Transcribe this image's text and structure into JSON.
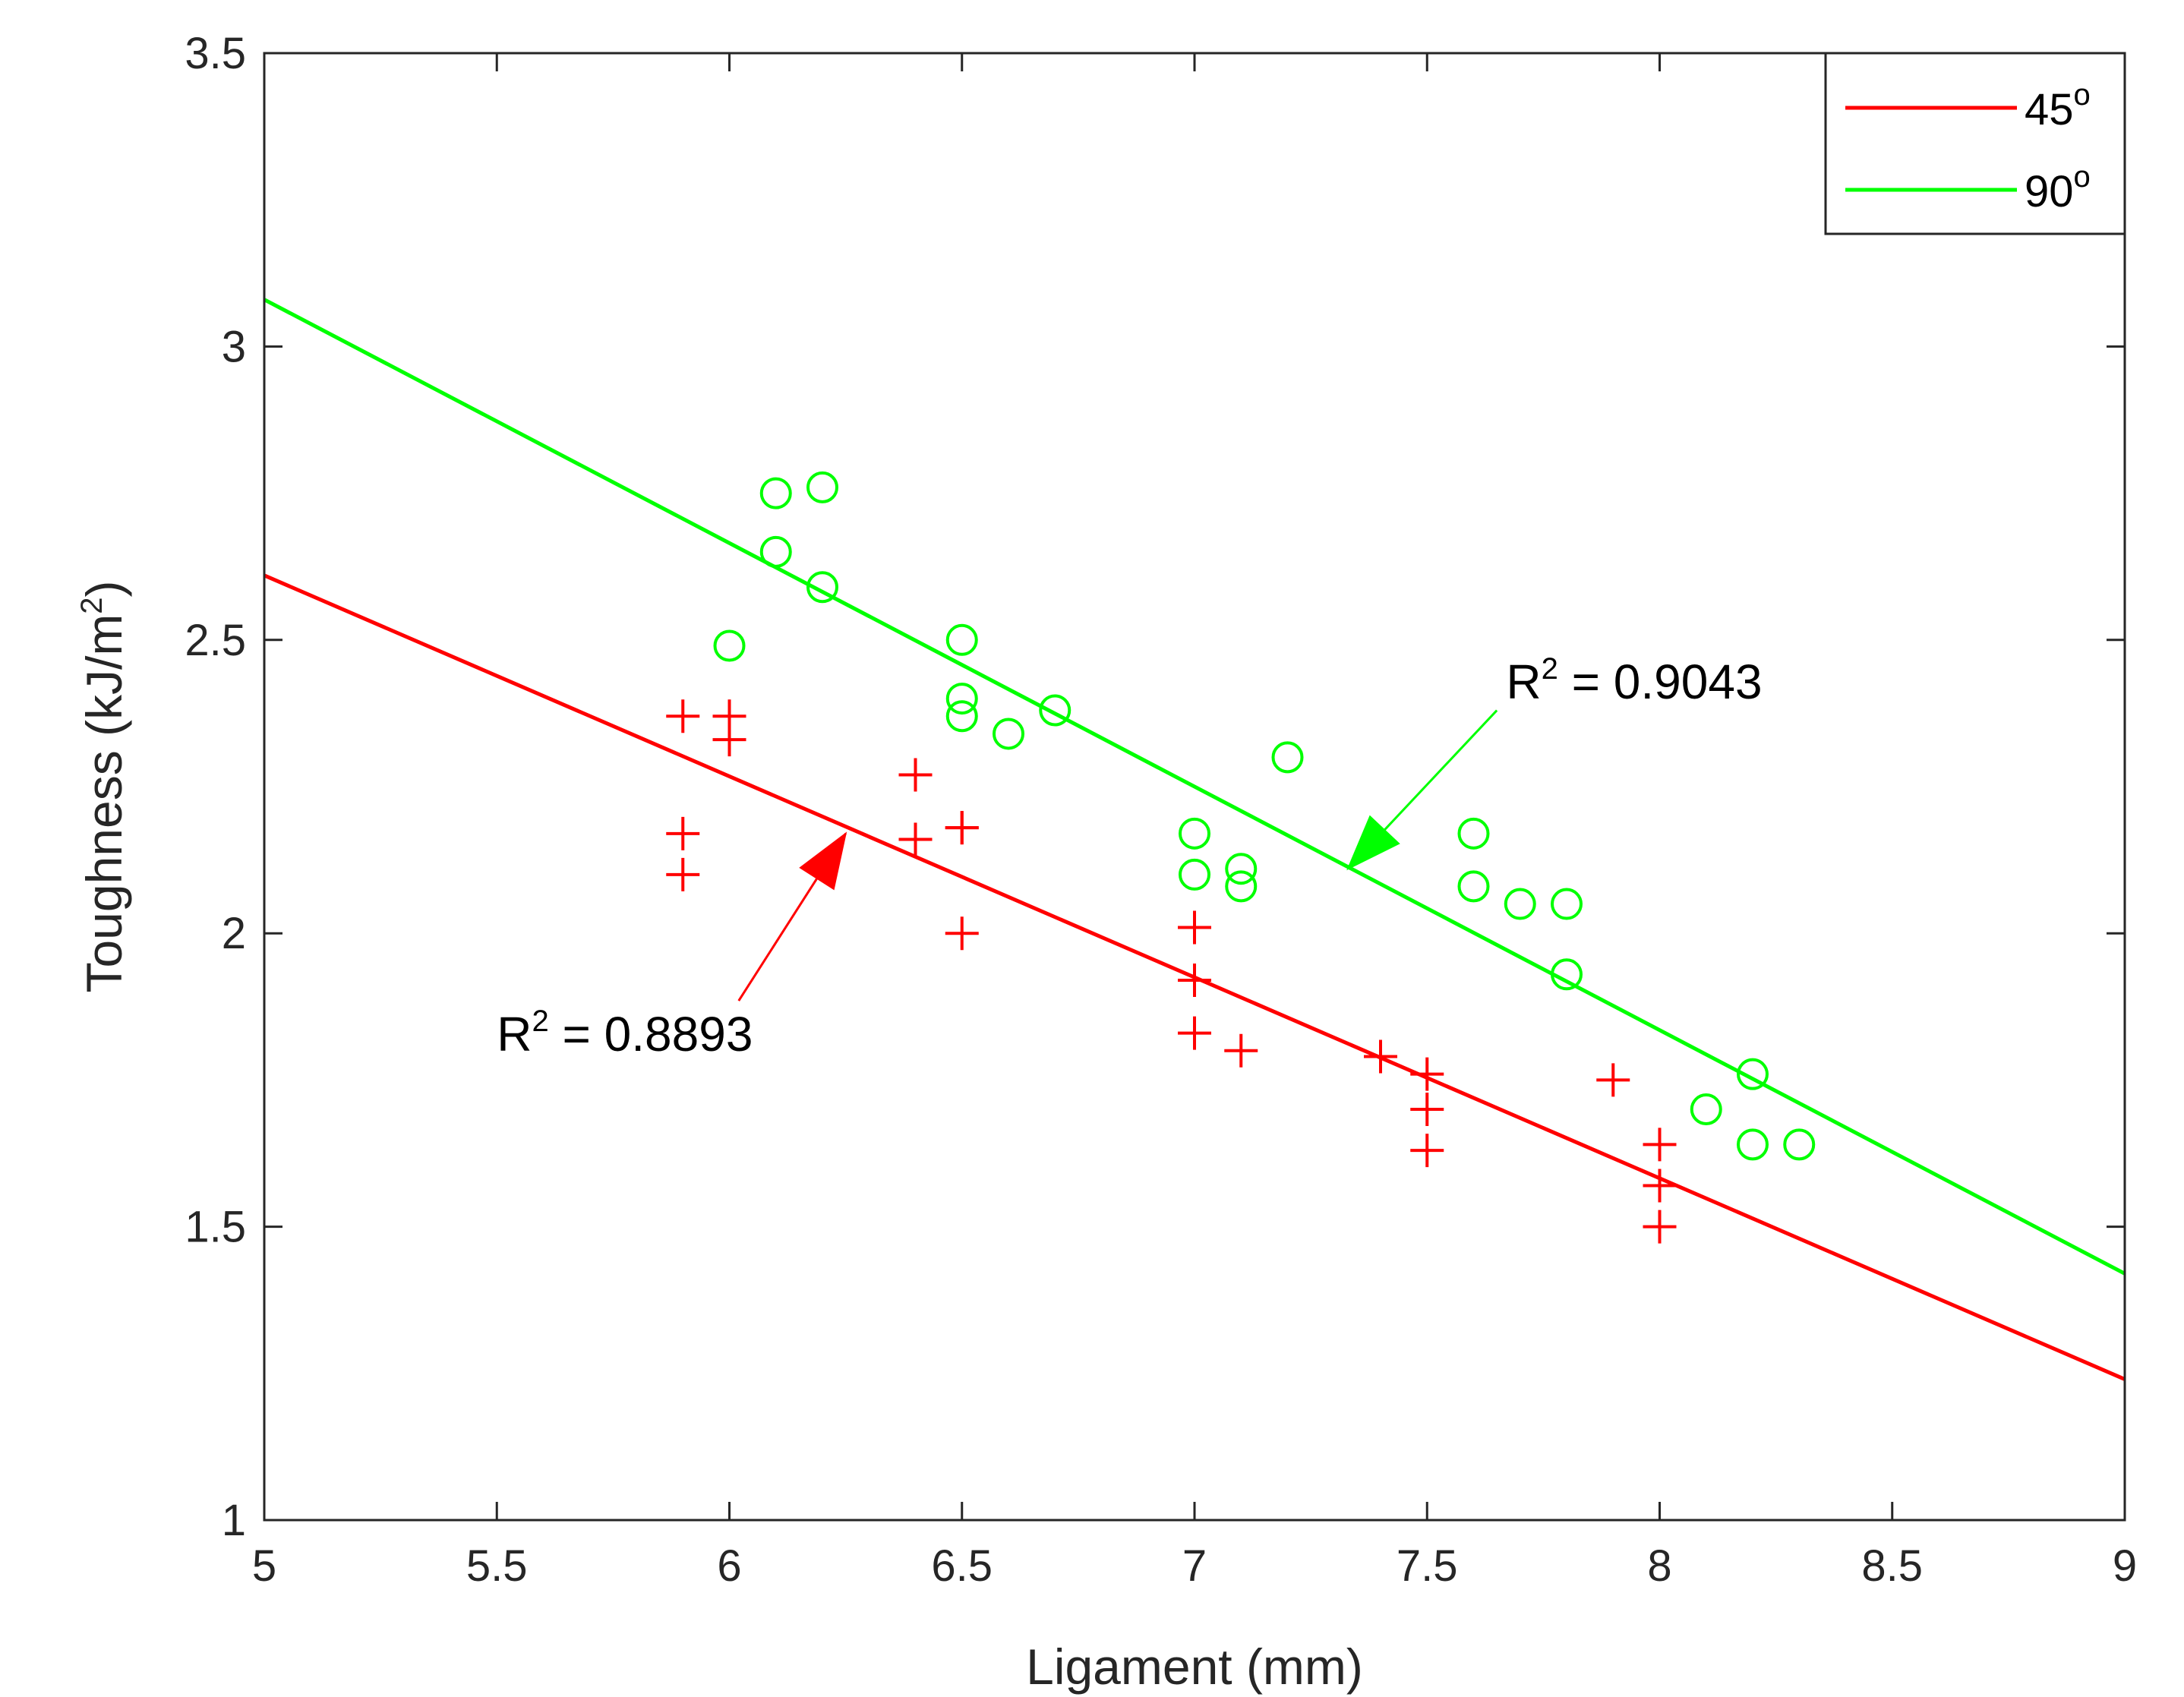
{
  "chart_data": {
    "type": "scatter",
    "title": "",
    "xlabel": "Ligament (mm)",
    "ylabel_main": "Toughness (kJ/m",
    "ylabel_sup": "2",
    "ylabel_end": ")",
    "xlim": [
      5,
      9
    ],
    "ylim": [
      1,
      3.5
    ],
    "xticks": [
      "5",
      "5.5",
      "6",
      "6.5",
      "7",
      "7.5",
      "8",
      "8.5",
      "9"
    ],
    "yticks": [
      "1",
      "1.5",
      "2",
      "2.5",
      "3",
      "3.5"
    ],
    "grid": false,
    "legend_position": "top-right",
    "series": [
      {
        "name": "45",
        "name_sup": "o",
        "color": "#ff0000",
        "marker": "plus",
        "fit": {
          "x": [
            5,
            9
          ],
          "y": [
            2.61,
            1.24
          ]
        },
        "r2_label": "R",
        "r2_sup": "2",
        "r2_value": " = 0.8893",
        "arrow": {
          "from": [
            6.02,
            1.885
          ],
          "to": [
            6.25,
            2.17
          ]
        },
        "label_at": [
          5.5,
          1.8
        ],
        "points": [
          [
            5.9,
            2.37
          ],
          [
            5.9,
            2.17
          ],
          [
            5.9,
            2.1
          ],
          [
            6.0,
            2.37
          ],
          [
            6.0,
            2.33
          ],
          [
            6.4,
            2.27
          ],
          [
            6.4,
            2.16
          ],
          [
            6.5,
            2.18
          ],
          [
            6.5,
            2.18
          ],
          [
            6.5,
            2.0
          ],
          [
            7.0,
            2.01
          ],
          [
            7.0,
            1.92
          ],
          [
            7.0,
            1.83
          ],
          [
            7.1,
            1.8
          ],
          [
            7.4,
            1.79
          ],
          [
            7.5,
            1.76
          ],
          [
            7.5,
            1.7
          ],
          [
            7.5,
            1.63
          ],
          [
            7.9,
            1.75
          ],
          [
            8.0,
            1.64
          ],
          [
            8.0,
            1.57
          ],
          [
            8.0,
            1.5
          ]
        ]
      },
      {
        "name": "90",
        "name_sup": "o",
        "color": "#00ff00",
        "marker": "circle",
        "fit": {
          "x": [
            5,
            9
          ],
          "y": [
            3.08,
            1.42
          ]
        },
        "r2_label": "R",
        "r2_sup": "2",
        "r2_value": " = 0.9043",
        "arrow": {
          "from": [
            7.65,
            2.38
          ],
          "to": [
            7.33,
            2.11
          ]
        },
        "label_at": [
          7.67,
          2.4
        ],
        "points": [
          [
            6.0,
            2.49
          ],
          [
            6.1,
            2.75
          ],
          [
            6.1,
            2.65
          ],
          [
            6.2,
            2.76
          ],
          [
            6.2,
            2.59
          ],
          [
            6.5,
            2.5
          ],
          [
            6.5,
            2.4
          ],
          [
            6.5,
            2.37
          ],
          [
            6.6,
            2.34
          ],
          [
            6.7,
            2.38
          ],
          [
            7.0,
            2.17
          ],
          [
            7.0,
            2.1
          ],
          [
            7.1,
            2.11
          ],
          [
            7.1,
            2.08
          ],
          [
            7.2,
            2.3
          ],
          [
            7.6,
            2.17
          ],
          [
            7.6,
            2.08
          ],
          [
            7.7,
            2.05
          ],
          [
            7.8,
            2.05
          ],
          [
            7.8,
            1.93
          ],
          [
            8.1,
            1.7
          ],
          [
            8.2,
            1.76
          ],
          [
            8.2,
            1.64
          ],
          [
            8.3,
            1.64
          ]
        ]
      }
    ]
  }
}
